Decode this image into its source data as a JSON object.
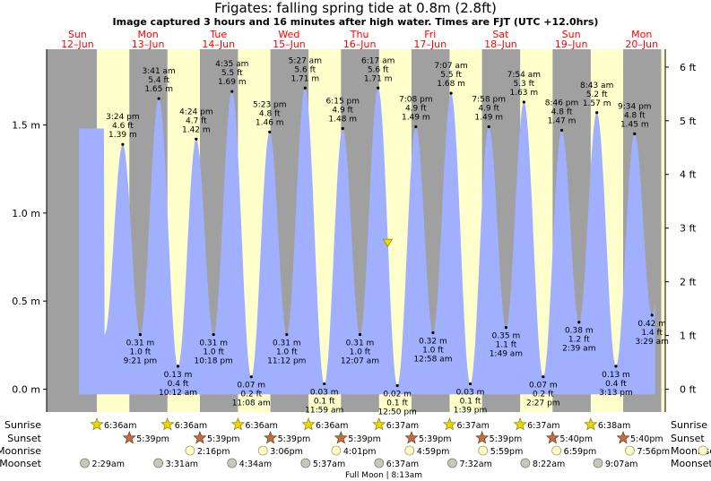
{
  "title": "Frigates: falling  spring tide at 0.8m (2.8ft)",
  "subtitle": "Image captured 3 hours and 16 minutes after high water. Times are FJT (UTC +12.0hrs)",
  "colors": {
    "day_bg": "#ffffcc",
    "night_bg": "#a0a0a0",
    "tide_fill": "#a0b0ff",
    "day_header": "#ff0000",
    "now_marker": "#e8e000"
  },
  "days": [
    {
      "name": "Sun",
      "date": "12–Jun"
    },
    {
      "name": "Mon",
      "date": "13–Jun"
    },
    {
      "name": "Tue",
      "date": "14–Jun"
    },
    {
      "name": "Wed",
      "date": "15–Jun"
    },
    {
      "name": "Thu",
      "date": "16–Jun"
    },
    {
      "name": "Fri",
      "date": "17–Jun"
    },
    {
      "name": "Sat",
      "date": "18–Jun"
    },
    {
      "name": "Sun",
      "date": "19–Jun"
    },
    {
      "name": "Mon",
      "date": "20–Jun"
    }
  ],
  "chart_data": {
    "type": "area",
    "title": "Frigates: falling  spring tide at 0.8m (2.8ft)",
    "x_unit": "hours from 00:00 12-Jun (FJT)",
    "left_axis": {
      "unit": "m",
      "range": [
        -0.13,
        1.93
      ],
      "ticks": [
        0.0,
        0.5,
        1.0,
        1.5
      ],
      "tick_labels": [
        "0.0 m",
        "0.5 m",
        "1.0 m",
        "1.5 m"
      ]
    },
    "right_axis": {
      "unit": "ft",
      "ticks": [
        0,
        1,
        2,
        3,
        4,
        5,
        6
      ],
      "tick_labels": [
        "0 ft",
        "1 ft",
        "2 ft",
        "3 ft",
        "4 ft",
        "5 ft",
        "6 ft"
      ]
    },
    "x_range": [
      -10.5,
      200
    ],
    "plot_start_hour": 0.5,
    "plot_end_hour": 196.5,
    "tide_extremes": [
      {
        "day": 0,
        "time": "3:24 pm",
        "kind": "high",
        "ft": "4.6 ft",
        "m": "1.39 m",
        "value": 1.39
      },
      {
        "day": 0,
        "time": "9:21 pm",
        "kind": "low",
        "ft": "1.0 ft",
        "m": "0.31 m",
        "value": 0.31
      },
      {
        "day": 1,
        "time": "3:41 am",
        "kind": "high",
        "ft": "5.4 ft",
        "m": "1.65 m",
        "value": 1.65
      },
      {
        "day": 1,
        "time": "10:12 am",
        "kind": "low",
        "ft": "0.4 ft",
        "m": "0.13 m",
        "value": 0.13
      },
      {
        "day": 1,
        "time": "4:24 pm",
        "kind": "high",
        "ft": "4.7 ft",
        "m": "1.42 m",
        "value": 1.42
      },
      {
        "day": 1,
        "time": "10:18 pm",
        "kind": "low",
        "ft": "1.0 ft",
        "m": "0.31 m",
        "value": 0.31
      },
      {
        "day": 2,
        "time": "4:35 am",
        "kind": "high",
        "ft": "5.5 ft",
        "m": "1.69 m",
        "value": 1.69
      },
      {
        "day": 2,
        "time": "11:08 am",
        "kind": "low",
        "ft": "0.2 ft",
        "m": "0.07 m",
        "value": 0.07
      },
      {
        "day": 2,
        "time": "5:23 pm",
        "kind": "high",
        "ft": "4.8 ft",
        "m": "1.46 m",
        "value": 1.46
      },
      {
        "day": 2,
        "time": "11:12 pm",
        "kind": "low",
        "ft": "1.0 ft",
        "m": "0.31 m",
        "value": 0.31
      },
      {
        "day": 3,
        "time": "5:27 am",
        "kind": "high",
        "ft": "5.6 ft",
        "m": "1.71 m",
        "value": 1.71
      },
      {
        "day": 3,
        "time": "11:59 am",
        "kind": "low",
        "ft": "0.1 ft",
        "m": "0.03 m",
        "value": 0.03
      },
      {
        "day": 3,
        "time": "6:15 pm",
        "kind": "high",
        "ft": "4.9 ft",
        "m": "1.48 m",
        "value": 1.48
      },
      {
        "day": 4,
        "time": "12:07 am",
        "kind": "low",
        "ft": "1.0 ft",
        "m": "0.31 m",
        "value": 0.31
      },
      {
        "day": 4,
        "time": "6:17 am",
        "kind": "high",
        "ft": "5.6 ft",
        "m": "1.71 m",
        "value": 1.71
      },
      {
        "day": 4,
        "time": "12:50 pm",
        "kind": "low",
        "ft": "0.1 ft",
        "m": "0.02 m",
        "value": 0.02
      },
      {
        "day": 4,
        "time": "7:08 pm",
        "kind": "high",
        "ft": "4.9 ft",
        "m": "1.49 m",
        "value": 1.49
      },
      {
        "day": 5,
        "time": "12:58 am",
        "kind": "low",
        "ft": "1.0 ft",
        "m": "0.32 m",
        "value": 0.32
      },
      {
        "day": 5,
        "time": "7:07 am",
        "kind": "high",
        "ft": "5.5 ft",
        "m": "1.68 m",
        "value": 1.68
      },
      {
        "day": 5,
        "time": "1:39 pm",
        "kind": "low",
        "ft": "0.1 ft",
        "m": "0.03 m",
        "value": 0.03
      },
      {
        "day": 5,
        "time": "7:58 pm",
        "kind": "high",
        "ft": "4.9 ft",
        "m": "1.49 m",
        "value": 1.49
      },
      {
        "day": 6,
        "time": "1:49 am",
        "kind": "low",
        "ft": "1.1 ft",
        "m": "0.35 m",
        "value": 0.35
      },
      {
        "day": 6,
        "time": "7:54 am",
        "kind": "high",
        "ft": "5.3 ft",
        "m": "1.63 m",
        "value": 1.63
      },
      {
        "day": 6,
        "time": "2:27 pm",
        "kind": "low",
        "ft": "0.2 ft",
        "m": "0.07 m",
        "value": 0.07
      },
      {
        "day": 6,
        "time": "8:46 pm",
        "kind": "high",
        "ft": "4.8 ft",
        "m": "1.47 m",
        "value": 1.47
      },
      {
        "day": 7,
        "time": "2:39 am",
        "kind": "low",
        "ft": "1.2 ft",
        "m": "0.38 m",
        "value": 0.38
      },
      {
        "day": 7,
        "time": "8:43 am",
        "kind": "high",
        "ft": "5.2 ft",
        "m": "1.57 m",
        "value": 1.57
      },
      {
        "day": 7,
        "time": "3:13 pm",
        "kind": "low",
        "ft": "0.4 ft",
        "m": "0.13 m",
        "value": 0.13
      },
      {
        "day": 7,
        "time": "9:34 pm",
        "kind": "high",
        "ft": "4.8 ft",
        "m": "1.45 m",
        "value": 1.45
      },
      {
        "day": 8,
        "time": "3:29 am",
        "kind": "low",
        "ft": "1.4 ft",
        "m": "0.42 m",
        "value": 0.42
      }
    ],
    "end_value": 1.48,
    "current": {
      "day": 4,
      "time": "9:33 am",
      "value": 0.8
    }
  },
  "almanac": {
    "row_labels": {
      "sunrise": "Sunrise",
      "sunset": "Sunset",
      "moonrise": "Moonrise",
      "moonset": "Moonset"
    },
    "sunrise": [
      {
        "day": 0,
        "time": "6:36am"
      },
      {
        "day": 1,
        "time": "6:36am"
      },
      {
        "day": 2,
        "time": "6:36am"
      },
      {
        "day": 3,
        "time": "6:36am"
      },
      {
        "day": 4,
        "time": "6:37am"
      },
      {
        "day": 5,
        "time": "6:37am"
      },
      {
        "day": 6,
        "time": "6:37am"
      },
      {
        "day": 7,
        "time": "6:38am"
      }
    ],
    "sunset": [
      {
        "day": 0,
        "time": "5:39pm"
      },
      {
        "day": 1,
        "time": "5:39pm"
      },
      {
        "day": 2,
        "time": "5:39pm"
      },
      {
        "day": 3,
        "time": "5:39pm"
      },
      {
        "day": 4,
        "time": "5:39pm"
      },
      {
        "day": 5,
        "time": "5:39pm"
      },
      {
        "day": 6,
        "time": "5:40pm"
      },
      {
        "day": 7,
        "time": "5:40pm"
      }
    ],
    "moonrise": [
      {
        "day": 1,
        "time": "2:16pm"
      },
      {
        "day": 2,
        "time": "3:06pm"
      },
      {
        "day": 3,
        "time": "4:01pm"
      },
      {
        "day": 4,
        "time": "4:59pm"
      },
      {
        "day": 5,
        "time": "5:59pm"
      },
      {
        "day": 6,
        "time": "6:59pm"
      },
      {
        "day": 7,
        "time": "7:56pm"
      },
      {
        "day": 8,
        "time": "8:51pm"
      }
    ],
    "moonset": [
      {
        "day": 0,
        "time": "2:29am"
      },
      {
        "day": 1,
        "time": "3:31am"
      },
      {
        "day": 2,
        "time": "4:34am"
      },
      {
        "day": 3,
        "time": "5:37am"
      },
      {
        "day": 4,
        "time": "6:37am"
      },
      {
        "day": 5,
        "time": "7:32am"
      },
      {
        "day": 6,
        "time": "8:22am"
      },
      {
        "day": 7,
        "time": "9:07am"
      }
    ],
    "full_moon": "Full Moon | 8:13am"
  }
}
